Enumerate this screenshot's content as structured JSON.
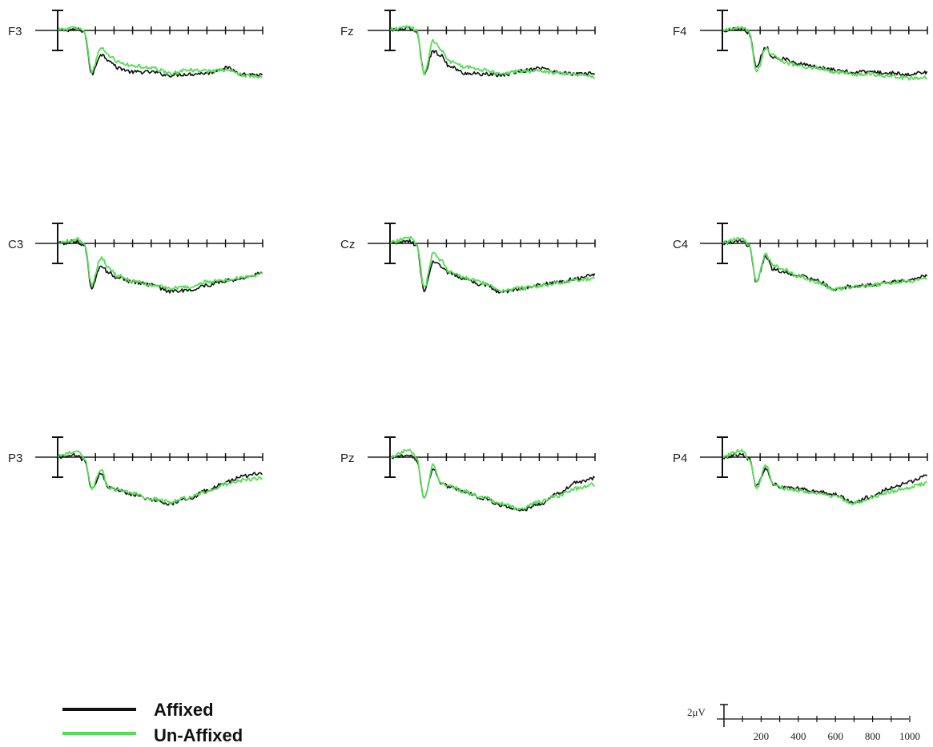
{
  "colors": {
    "affixed": "#111111",
    "unaffixed": "#55dd55",
    "axis": "#111111"
  },
  "legend": {
    "items": [
      {
        "label": "Affixed",
        "color": "#111111"
      },
      {
        "label": "Un-Affixed",
        "color": "#55dd55"
      }
    ]
  },
  "scale": {
    "amplitude_label": "2μV",
    "time_ticks": [
      "200",
      "400",
      "600",
      "800",
      "1000"
    ]
  },
  "chart_data": {
    "type": "line",
    "x_unit": "ms",
    "y_unit": "μV",
    "xlim": [
      -100,
      1000
    ],
    "amplitude_bar_uv": 2,
    "tick_interval_ms": 100,
    "polarity": "negative up is not indicated; values as plotted (down = lower)",
    "channels": [
      {
        "name": "F3",
        "affixed": [
          [
            -100,
            0.0
          ],
          [
            0,
            0.1
          ],
          [
            40,
            -0.2
          ],
          [
            80,
            -4.2
          ],
          [
            130,
            -2.3
          ],
          [
            170,
            -2.8
          ],
          [
            220,
            -3.6
          ],
          [
            300,
            -4.0
          ],
          [
            400,
            -4.0
          ],
          [
            500,
            -4.3
          ],
          [
            600,
            -4.2
          ],
          [
            700,
            -4.1
          ],
          [
            800,
            -3.6
          ],
          [
            900,
            -4.2
          ],
          [
            1000,
            -4.3
          ]
        ],
        "unaffixed": [
          [
            -100,
            0.1
          ],
          [
            0,
            0.2
          ],
          [
            40,
            -0.1
          ],
          [
            80,
            -4.0
          ],
          [
            130,
            -1.6
          ],
          [
            170,
            -2.4
          ],
          [
            220,
            -3.0
          ],
          [
            300,
            -3.4
          ],
          [
            400,
            -3.6
          ],
          [
            500,
            -4.1
          ],
          [
            600,
            -3.8
          ],
          [
            700,
            -3.9
          ],
          [
            800,
            -3.8
          ],
          [
            900,
            -4.3
          ],
          [
            1000,
            -4.5
          ]
        ]
      },
      {
        "name": "Fz",
        "affixed": [
          [
            -100,
            0.0
          ],
          [
            0,
            0.2
          ],
          [
            40,
            -0.1
          ],
          [
            80,
            -4.1
          ],
          [
            130,
            -2.0
          ],
          [
            170,
            -2.4
          ],
          [
            220,
            -3.5
          ],
          [
            300,
            -4.1
          ],
          [
            400,
            -4.2
          ],
          [
            500,
            -4.3
          ],
          [
            600,
            -3.9
          ],
          [
            700,
            -3.6
          ],
          [
            800,
            -4.0
          ],
          [
            900,
            -4.2
          ],
          [
            1000,
            -4.1
          ]
        ],
        "unaffixed": [
          [
            -100,
            0.1
          ],
          [
            0,
            0.4
          ],
          [
            40,
            0.0
          ],
          [
            80,
            -4.1
          ],
          [
            130,
            -1.0
          ],
          [
            170,
            -1.9
          ],
          [
            220,
            -3.0
          ],
          [
            300,
            -3.5
          ],
          [
            400,
            -3.8
          ],
          [
            500,
            -4.2
          ],
          [
            600,
            -3.9
          ],
          [
            700,
            -3.9
          ],
          [
            800,
            -4.1
          ],
          [
            900,
            -4.3
          ],
          [
            1000,
            -4.5
          ]
        ]
      },
      {
        "name": "F4",
        "affixed": [
          [
            -100,
            0.0
          ],
          [
            0,
            0.2
          ],
          [
            40,
            -0.2
          ],
          [
            80,
            -3.4
          ],
          [
            130,
            -1.6
          ],
          [
            170,
            -2.6
          ],
          [
            220,
            -2.7
          ],
          [
            300,
            -3.2
          ],
          [
            400,
            -3.5
          ],
          [
            500,
            -3.8
          ],
          [
            600,
            -4.0
          ],
          [
            700,
            -4.0
          ],
          [
            800,
            -4.1
          ],
          [
            900,
            -4.2
          ],
          [
            1000,
            -4.0
          ]
        ],
        "unaffixed": [
          [
            -100,
            0.1
          ],
          [
            0,
            0.3
          ],
          [
            40,
            -0.1
          ],
          [
            80,
            -4.0
          ],
          [
            130,
            -1.8
          ],
          [
            170,
            -2.3
          ],
          [
            220,
            -3.0
          ],
          [
            300,
            -3.4
          ],
          [
            400,
            -3.6
          ],
          [
            500,
            -4.0
          ],
          [
            600,
            -4.2
          ],
          [
            700,
            -4.2
          ],
          [
            800,
            -4.4
          ],
          [
            900,
            -4.6
          ],
          [
            1000,
            -4.5
          ]
        ]
      },
      {
        "name": "C3",
        "affixed": [
          [
            -100,
            0.0
          ],
          [
            0,
            0.2
          ],
          [
            40,
            -0.2
          ],
          [
            80,
            -4.3
          ],
          [
            130,
            -2.1
          ],
          [
            170,
            -2.8
          ],
          [
            220,
            -3.3
          ],
          [
            300,
            -3.7
          ],
          [
            400,
            -4.0
          ],
          [
            500,
            -4.6
          ],
          [
            600,
            -4.5
          ],
          [
            700,
            -4.0
          ],
          [
            800,
            -3.6
          ],
          [
            900,
            -3.3
          ],
          [
            1000,
            -2.8
          ]
        ],
        "unaffixed": [
          [
            -100,
            0.1
          ],
          [
            0,
            0.4
          ],
          [
            40,
            -0.1
          ],
          [
            80,
            -4.0
          ],
          [
            130,
            -1.4
          ],
          [
            170,
            -2.3
          ],
          [
            220,
            -3.1
          ],
          [
            300,
            -3.6
          ],
          [
            400,
            -4.0
          ],
          [
            500,
            -4.3
          ],
          [
            600,
            -4.2
          ],
          [
            700,
            -3.7
          ],
          [
            800,
            -3.5
          ],
          [
            900,
            -3.3
          ],
          [
            1000,
            -3.0
          ]
        ]
      },
      {
        "name": "Cz",
        "affixed": [
          [
            -100,
            0.0
          ],
          [
            0,
            0.2
          ],
          [
            40,
            -0.2
          ],
          [
            80,
            -4.6
          ],
          [
            130,
            -1.7
          ],
          [
            170,
            -2.2
          ],
          [
            220,
            -2.9
          ],
          [
            300,
            -3.4
          ],
          [
            400,
            -4.0
          ],
          [
            500,
            -4.7
          ],
          [
            600,
            -4.4
          ],
          [
            700,
            -4.0
          ],
          [
            800,
            -3.7
          ],
          [
            900,
            -3.4
          ],
          [
            1000,
            -3.0
          ]
        ],
        "unaffixed": [
          [
            -100,
            0.1
          ],
          [
            0,
            0.6
          ],
          [
            40,
            -0.1
          ],
          [
            80,
            -4.3
          ],
          [
            130,
            -1.0
          ],
          [
            170,
            -1.6
          ],
          [
            220,
            -2.8
          ],
          [
            300,
            -3.3
          ],
          [
            400,
            -3.8
          ],
          [
            500,
            -4.6
          ],
          [
            600,
            -4.3
          ],
          [
            700,
            -4.1
          ],
          [
            800,
            -3.8
          ],
          [
            900,
            -3.5
          ],
          [
            1000,
            -3.4
          ]
        ]
      },
      {
        "name": "C4",
        "affixed": [
          [
            -100,
            0.0
          ],
          [
            0,
            0.3
          ],
          [
            40,
            -0.2
          ],
          [
            80,
            -3.7
          ],
          [
            130,
            -1.3
          ],
          [
            170,
            -2.5
          ],
          [
            220,
            -2.7
          ],
          [
            300,
            -3.1
          ],
          [
            400,
            -3.5
          ],
          [
            500,
            -4.4
          ],
          [
            600,
            -4.1
          ],
          [
            700,
            -4.0
          ],
          [
            800,
            -3.7
          ],
          [
            900,
            -3.5
          ],
          [
            1000,
            -3.1
          ]
        ],
        "unaffixed": [
          [
            -100,
            0.1
          ],
          [
            0,
            0.5
          ],
          [
            40,
            -0.1
          ],
          [
            80,
            -3.7
          ],
          [
            130,
            -1.0
          ],
          [
            170,
            -2.2
          ],
          [
            220,
            -2.4
          ],
          [
            300,
            -3.1
          ],
          [
            400,
            -3.7
          ],
          [
            500,
            -4.4
          ],
          [
            600,
            -4.2
          ],
          [
            700,
            -4.0
          ],
          [
            800,
            -3.8
          ],
          [
            900,
            -3.6
          ],
          [
            1000,
            -3.4
          ]
        ]
      },
      {
        "name": "P3",
        "affixed": [
          [
            -100,
            0.0
          ],
          [
            0,
            0.2
          ],
          [
            40,
            -0.3
          ],
          [
            80,
            -3.0
          ],
          [
            130,
            -1.5
          ],
          [
            170,
            -2.9
          ],
          [
            220,
            -3.1
          ],
          [
            300,
            -3.6
          ],
          [
            400,
            -4.1
          ],
          [
            500,
            -4.5
          ],
          [
            600,
            -4.0
          ],
          [
            700,
            -3.2
          ],
          [
            800,
            -2.4
          ],
          [
            900,
            -1.8
          ],
          [
            1000,
            -1.5
          ]
        ],
        "unaffixed": [
          [
            -100,
            0.1
          ],
          [
            0,
            0.6
          ],
          [
            40,
            -0.1
          ],
          [
            80,
            -3.0
          ],
          [
            130,
            -1.2
          ],
          [
            170,
            -2.9
          ],
          [
            220,
            -3.1
          ],
          [
            300,
            -3.5
          ],
          [
            400,
            -4.0
          ],
          [
            500,
            -4.3
          ],
          [
            600,
            -3.9
          ],
          [
            700,
            -3.3
          ],
          [
            800,
            -2.6
          ],
          [
            900,
            -2.2
          ],
          [
            1000,
            -2.0
          ]
        ]
      },
      {
        "name": "Pz",
        "affixed": [
          [
            -100,
            0.0
          ],
          [
            0,
            0.2
          ],
          [
            40,
            -0.3
          ],
          [
            80,
            -4.0
          ],
          [
            130,
            -1.1
          ],
          [
            170,
            -2.5
          ],
          [
            220,
            -2.9
          ],
          [
            300,
            -3.4
          ],
          [
            400,
            -4.0
          ],
          [
            500,
            -4.6
          ],
          [
            600,
            -5.1
          ],
          [
            700,
            -4.5
          ],
          [
            800,
            -3.5
          ],
          [
            900,
            -2.4
          ],
          [
            1000,
            -2.0
          ]
        ],
        "unaffixed": [
          [
            -100,
            0.1
          ],
          [
            0,
            0.7
          ],
          [
            40,
            -0.1
          ],
          [
            80,
            -4.0
          ],
          [
            130,
            -0.8
          ],
          [
            170,
            -2.5
          ],
          [
            220,
            -2.8
          ],
          [
            300,
            -3.3
          ],
          [
            400,
            -3.9
          ],
          [
            500,
            -4.5
          ],
          [
            600,
            -5.0
          ],
          [
            700,
            -4.3
          ],
          [
            800,
            -3.7
          ],
          [
            900,
            -3.0
          ],
          [
            1000,
            -2.6
          ]
        ]
      },
      {
        "name": "P4",
        "affixed": [
          [
            -100,
            0.0
          ],
          [
            0,
            0.3
          ],
          [
            40,
            -0.2
          ],
          [
            80,
            -2.8
          ],
          [
            130,
            -1.1
          ],
          [
            170,
            -2.6
          ],
          [
            220,
            -2.9
          ],
          [
            300,
            -3.0
          ],
          [
            400,
            -3.3
          ],
          [
            500,
            -3.6
          ],
          [
            600,
            -4.3
          ],
          [
            700,
            -3.8
          ],
          [
            800,
            -3.0
          ],
          [
            900,
            -2.4
          ],
          [
            1000,
            -1.7
          ]
        ],
        "unaffixed": [
          [
            -100,
            0.1
          ],
          [
            0,
            0.6
          ],
          [
            40,
            -0.1
          ],
          [
            80,
            -3.0
          ],
          [
            130,
            -0.8
          ],
          [
            170,
            -2.6
          ],
          [
            220,
            -3.0
          ],
          [
            300,
            -3.2
          ],
          [
            400,
            -3.5
          ],
          [
            500,
            -3.8
          ],
          [
            600,
            -4.4
          ],
          [
            700,
            -3.9
          ],
          [
            800,
            -3.3
          ],
          [
            900,
            -2.9
          ],
          [
            1000,
            -2.5
          ]
        ]
      }
    ]
  }
}
